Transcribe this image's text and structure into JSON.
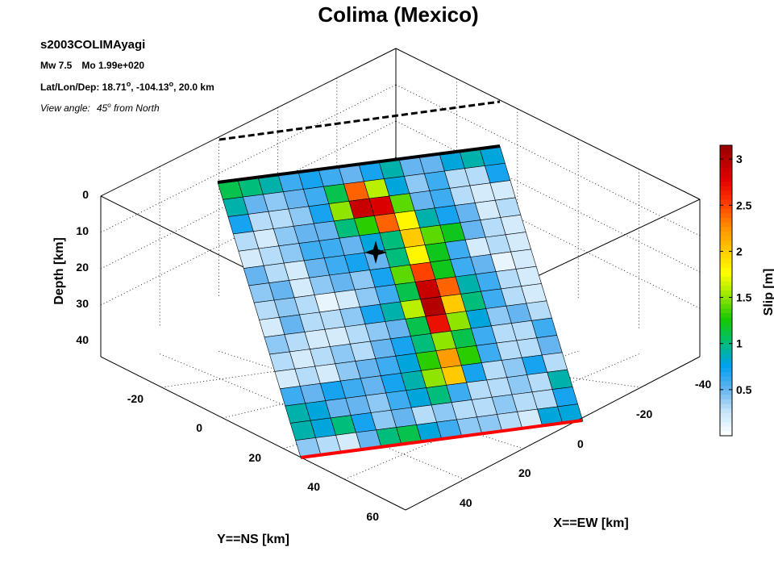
{
  "chart_data": {
    "type": "heatmap",
    "title": "Colima (Mexico)",
    "event_id": "s2003COLIMAyagi",
    "magnitude_line": {
      "mw": "Mw 7.5",
      "mo": "Mo 1.99e+020"
    },
    "location_line": {
      "prefix": "Lat/Lon/Dep: 18.71",
      "lon": ", -104.13",
      "dep": ", 20.0 km",
      "degree_mark": "o"
    },
    "view_line": {
      "label": "View angle:",
      "value": "45",
      "suffix": " from North",
      "degree_mark": "o"
    },
    "xlabel": "X==EW [km]",
    "ylabel": "Y==NS [km]",
    "zlabel": "Depth [km]",
    "x_ticks": [
      "-40",
      "-20",
      "0",
      "20",
      "40"
    ],
    "y_ticks": [
      "-20",
      "0",
      "20",
      "40",
      "60"
    ],
    "z_ticks": [
      "0",
      "10",
      "20",
      "30",
      "40"
    ],
    "colorbar": {
      "label": "Slip [m]",
      "ticks": [
        "0.5",
        "1",
        "1.5",
        "2",
        "2.5",
        "3"
      ],
      "range": [
        0,
        3.15
      ]
    },
    "hypocenter_depth_km": 20.0,
    "grid_rows": 16,
    "grid_cols": 14,
    "slip": [
      [
        1.1,
        1.0,
        0.9,
        0.6,
        0.7,
        0.6,
        0.5,
        0.7,
        0.9,
        0.5,
        0.5,
        0.8,
        0.9,
        0.8
      ],
      [
        0.9,
        0.5,
        0.4,
        0.5,
        0.6,
        1.1,
        2.4,
        1.6,
        0.8,
        0.4,
        0.6,
        0.3,
        0.3,
        0.7
      ],
      [
        0.7,
        0.3,
        0.3,
        0.4,
        0.7,
        1.5,
        2.9,
        2.8,
        1.4,
        0.5,
        0.6,
        0.3,
        0.2,
        0.2
      ],
      [
        0.3,
        0.2,
        0.4,
        0.5,
        0.5,
        1.0,
        1.3,
        2.4,
        1.8,
        0.9,
        0.7,
        0.5,
        0.2,
        0.3
      ],
      [
        0.2,
        0.3,
        0.4,
        0.6,
        0.6,
        0.5,
        0.8,
        1.0,
        2.0,
        1.4,
        1.2,
        0.5,
        0.3,
        0.2
      ],
      [
        0.5,
        0.3,
        0.2,
        0.5,
        0.6,
        0.7,
        0.5,
        1.0,
        1.8,
        1.2,
        0.6,
        0.2,
        0.3,
        0.2
      ],
      [
        0.4,
        0.5,
        0.2,
        0.4,
        0.5,
        0.4,
        0.7,
        1.4,
        2.5,
        1.2,
        0.6,
        0.5,
        0.1,
        0.2
      ],
      [
        0.3,
        0.4,
        0.3,
        0.1,
        0.2,
        0.4,
        0.6,
        1.1,
        2.9,
        2.4,
        0.9,
        0.6,
        0.3,
        0.2
      ],
      [
        0.2,
        0.5,
        0.3,
        0.3,
        0.4,
        0.7,
        0.9,
        1.6,
        3.0,
        2.0,
        1.0,
        0.6,
        0.3,
        0.2
      ],
      [
        0.4,
        0.3,
        0.2,
        0.2,
        0.3,
        0.4,
        0.5,
        1.1,
        2.7,
        1.5,
        0.8,
        0.4,
        0.5,
        0.3
      ],
      [
        0.3,
        0.2,
        0.3,
        0.4,
        0.3,
        0.5,
        0.7,
        1.0,
        1.5,
        1.1,
        0.6,
        0.3,
        0.3,
        0.6
      ],
      [
        0.2,
        0.3,
        0.2,
        0.4,
        0.5,
        0.6,
        0.8,
        1.3,
        2.2,
        1.3,
        0.6,
        0.3,
        0.3,
        0.5
      ],
      [
        0.6,
        0.5,
        0.7,
        0.6,
        0.5,
        0.7,
        0.9,
        1.5,
        2.0,
        0.7,
        0.3,
        0.4,
        0.7,
        0.3
      ],
      [
        0.9,
        0.8,
        0.5,
        0.5,
        0.4,
        0.6,
        0.8,
        1.0,
        0.6,
        0.3,
        0.3,
        0.4,
        0.3,
        0.9
      ],
      [
        0.9,
        0.8,
        1.0,
        0.7,
        0.4,
        0.5,
        0.3,
        0.4,
        0.3,
        0.3,
        0.4,
        0.3,
        0.3,
        0.7
      ],
      [
        0.4,
        0.3,
        0.2,
        0.5,
        1.0,
        1.1,
        0.8,
        0.6,
        0.4,
        0.4,
        0.3,
        0.2,
        0.8,
        0.8
      ]
    ],
    "colors": {
      "top_edge": "#000000",
      "bottom_edge": "#ff0000",
      "surface_trace": "#000000"
    }
  }
}
